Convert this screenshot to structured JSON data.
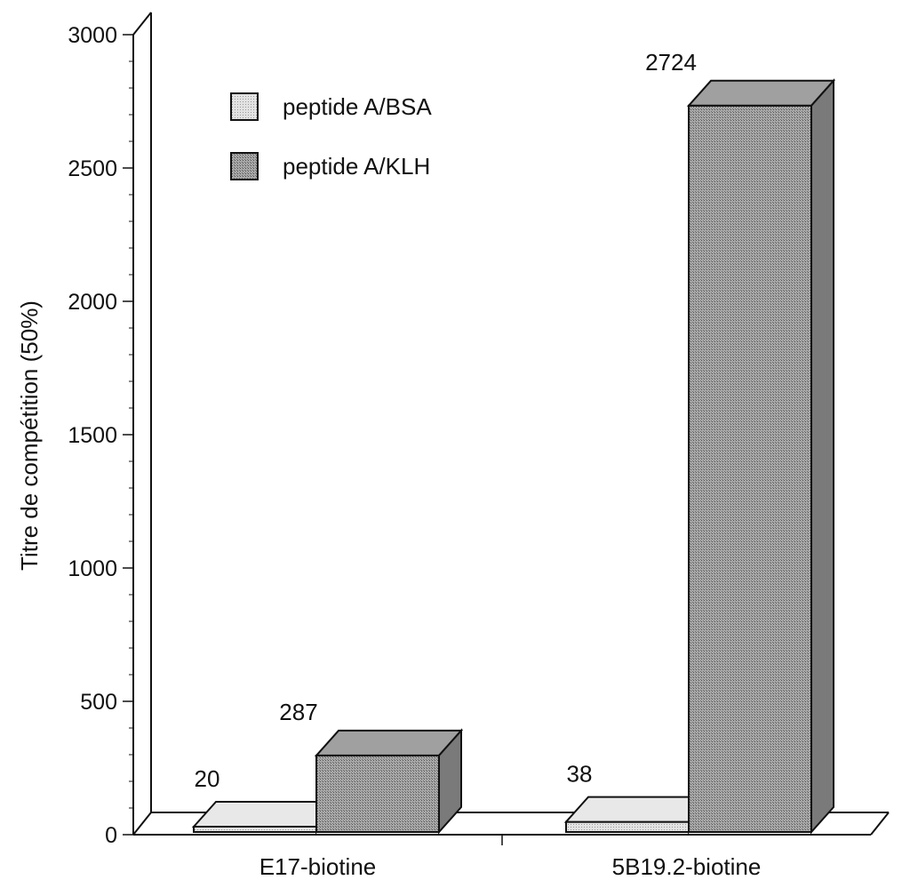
{
  "chart_data": {
    "type": "bar",
    "categories": [
      "E17-biotine",
      "5B19.2-biotine"
    ],
    "series": [
      {
        "name": "peptide A/BSA",
        "values": [
          20,
          38
        ],
        "color": "#d6d6d6"
      },
      {
        "name": "peptide A/KLH",
        "values": [
          287,
          2724
        ],
        "color": "#9a9a9a"
      }
    ],
    "data_labels": [
      [
        "20",
        "287"
      ],
      [
        "38",
        "2724"
      ]
    ],
    "ylabel": "Titre de compétition (50%)",
    "xlabel": "",
    "ylim": [
      0,
      3000
    ],
    "yticks": [
      0,
      500,
      1000,
      1500,
      2000,
      2500,
      3000
    ],
    "ytick_labels": [
      "0",
      "500",
      "1000",
      "1500",
      "2000",
      "2500",
      "3000"
    ],
    "projection": "3d",
    "grid": false,
    "legend_position": "top-left"
  }
}
